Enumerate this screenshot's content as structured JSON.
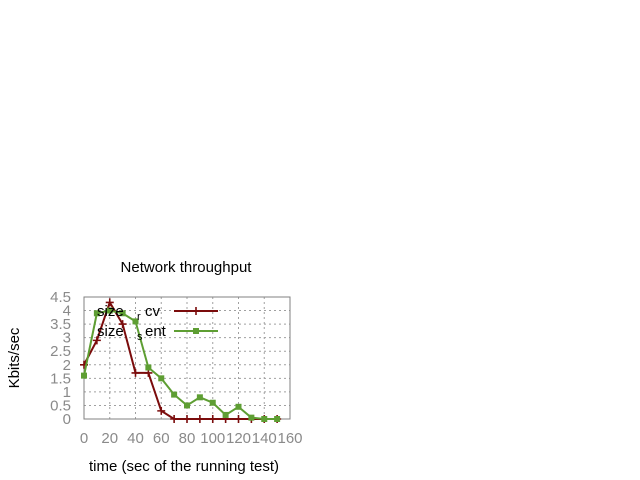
{
  "chart_data": {
    "type": "line",
    "title": "Network throughput",
    "xlabel": "time (sec of the running test)",
    "ylabel": "Kbits/sec",
    "xlim": [
      0,
      160
    ],
    "ylim": [
      0,
      4.5
    ],
    "xticks": [
      "0",
      "20",
      "40",
      "60",
      "80",
      "100",
      "120",
      "140",
      "160"
    ],
    "yticks": [
      "0",
      "0.5",
      "1",
      "1.5",
      "2",
      "2.5",
      "3",
      "3.5",
      "4",
      "4.5"
    ],
    "grid": true,
    "legend_position": "top-right",
    "x": [
      0,
      10,
      20,
      30,
      40,
      50,
      60,
      70,
      80,
      90,
      100,
      110,
      120,
      130,
      140,
      150
    ],
    "series": [
      {
        "name_main": "size",
        "name_sub": "rcv",
        "color": "#7b0c0c",
        "marker": "plus",
        "values": [
          2.0,
          2.9,
          4.3,
          3.5,
          1.7,
          1.7,
          0.3,
          0.0,
          0.0,
          0.0,
          0.0,
          0.0,
          0.0,
          0.0,
          0.0,
          0.0
        ]
      },
      {
        "name_main": "size",
        "name_sub": "sent",
        "color": "#5e9e33",
        "marker": "square",
        "values": [
          1.6,
          3.9,
          4.0,
          3.9,
          3.6,
          1.9,
          1.5,
          0.9,
          0.5,
          0.8,
          0.6,
          0.15,
          0.45,
          0.05,
          0.0,
          0.0
        ]
      }
    ]
  }
}
